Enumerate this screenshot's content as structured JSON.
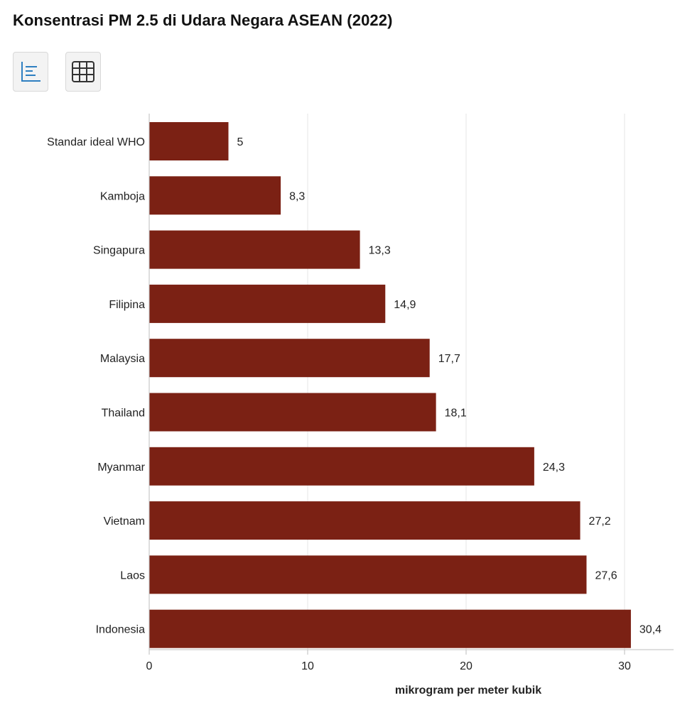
{
  "header": {
    "title": "Konsentrasi PM 2.5 di Udara Negara ASEAN (2022)"
  },
  "toolbar": {
    "chart_view_icon": "bar-chart-icon",
    "table_view_icon": "table-grid-icon"
  },
  "colors": {
    "bar": "#7b2114",
    "grid": "#e4e4e4",
    "axis": "#bdbdbd"
  },
  "chart_data": {
    "type": "bar",
    "orientation": "horizontal",
    "categories": [
      "Standar ideal WHO",
      "Kamboja",
      "Singapura",
      "Filipina",
      "Malaysia",
      "Thailand",
      "Myanmar",
      "Vietnam",
      "Laos",
      "Indonesia"
    ],
    "values": [
      5,
      8.3,
      13.3,
      14.9,
      17.7,
      18.1,
      24.3,
      27.2,
      27.6,
      30.4
    ],
    "value_labels": [
      "5",
      "8,3",
      "13,3",
      "14,9",
      "17,7",
      "18,1",
      "24,3",
      "27,2",
      "27,6",
      "30,4"
    ],
    "title": "Konsentrasi PM 2.5 di Udara Negara ASEAN (2022)",
    "xlabel": "mikrogram per meter kubik",
    "ylabel": "",
    "xlim": [
      0,
      32
    ],
    "xticks": [
      0,
      10,
      20,
      30
    ],
    "grid": true
  }
}
